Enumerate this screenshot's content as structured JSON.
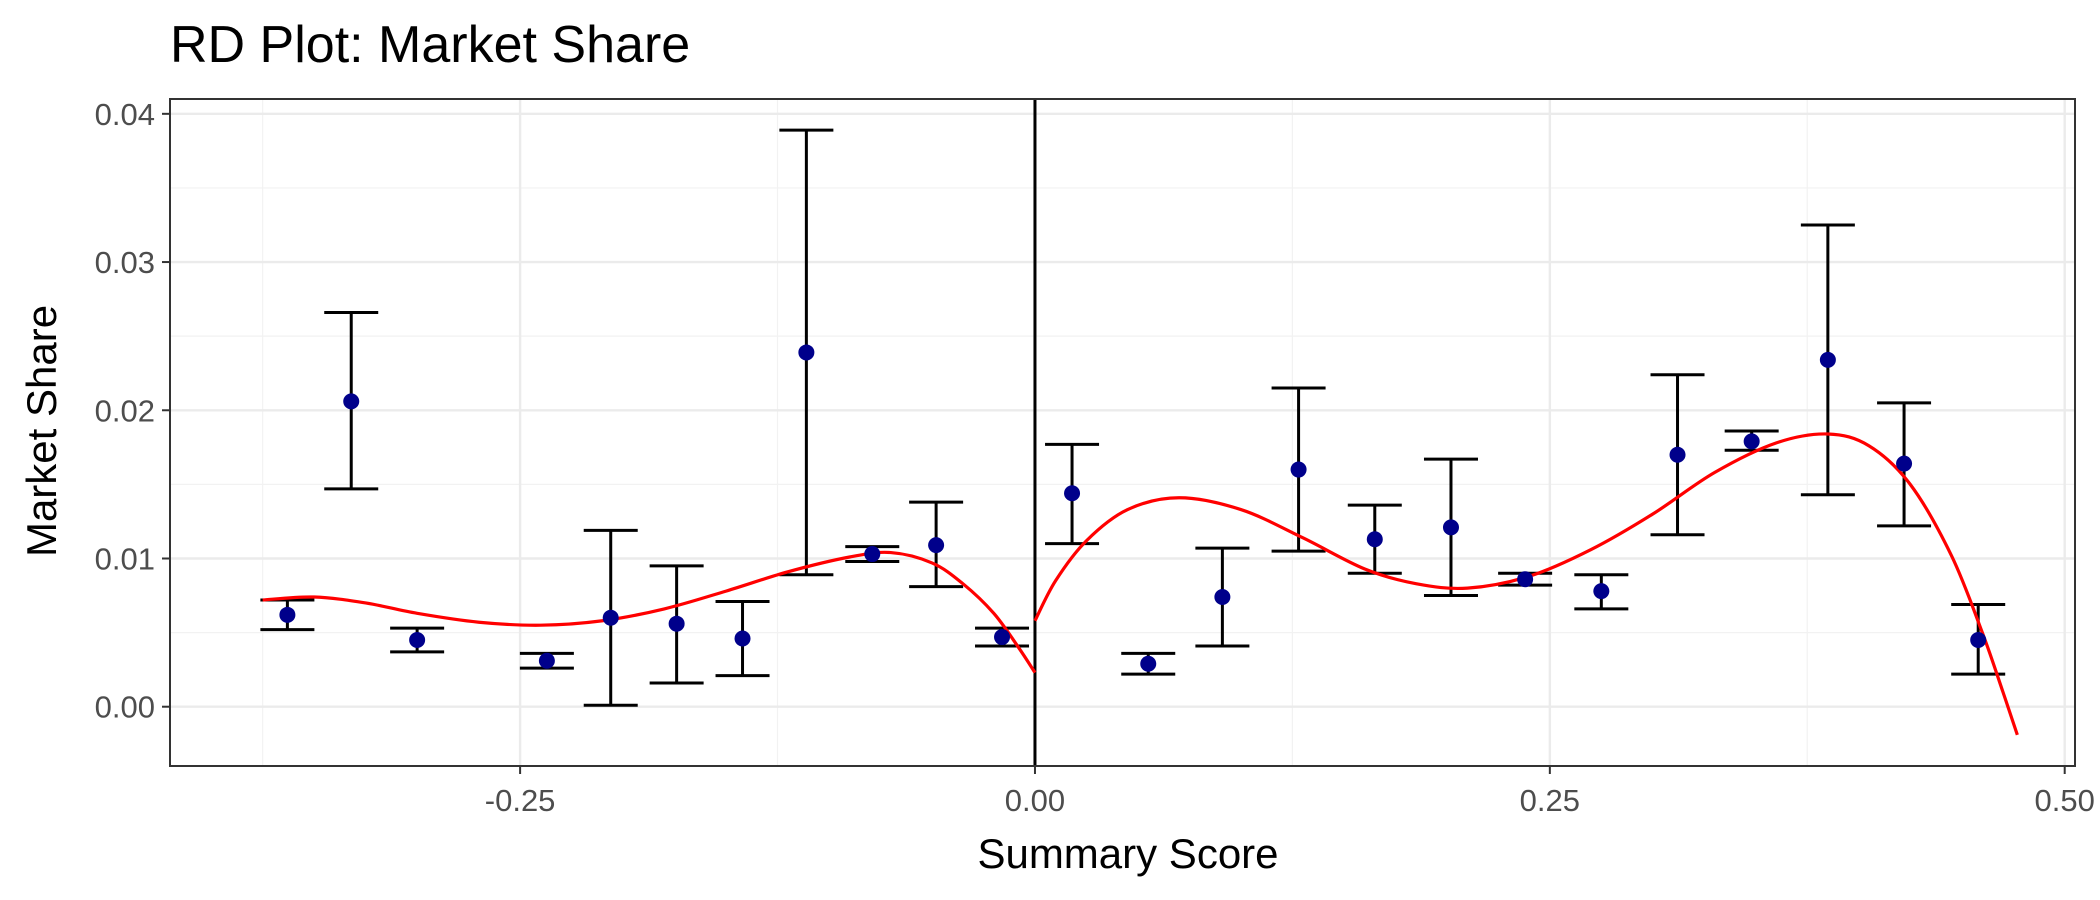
{
  "chart_data": {
    "type": "scatter",
    "title": "RD Plot: Market Share",
    "xlabel": "Summary Score",
    "ylabel": "Market Share",
    "xlim": [
      -0.42,
      0.505
    ],
    "ylim": [
      -0.004,
      0.041
    ],
    "xticks": [
      -0.25,
      0.0,
      0.25,
      0.5
    ],
    "xtick_labels": [
      "-0.25",
      "0.00",
      "0.25",
      "0.50"
    ],
    "yticks": [
      0.0,
      0.01,
      0.02,
      0.03,
      0.04
    ],
    "ytick_labels": [
      "0.00",
      "0.01",
      "0.02",
      "0.03",
      "0.04"
    ],
    "cutoff": 0.0,
    "grid": true,
    "points": [
      {
        "x": -0.363,
        "y": 0.0062,
        "lo": 0.0052,
        "hi": 0.0072
      },
      {
        "x": -0.332,
        "y": 0.0206,
        "lo": 0.0147,
        "hi": 0.0266
      },
      {
        "x": -0.3,
        "y": 0.0045,
        "lo": 0.0037,
        "hi": 0.0053
      },
      {
        "x": -0.237,
        "y": 0.0031,
        "lo": 0.0026,
        "hi": 0.0036
      },
      {
        "x": -0.206,
        "y": 0.006,
        "lo": 0.0001,
        "hi": 0.0119
      },
      {
        "x": -0.174,
        "y": 0.0056,
        "lo": 0.0016,
        "hi": 0.0095
      },
      {
        "x": -0.142,
        "y": 0.0046,
        "lo": 0.0021,
        "hi": 0.0071
      },
      {
        "x": -0.111,
        "y": 0.0239,
        "lo": 0.0089,
        "hi": 0.0389
      },
      {
        "x": -0.079,
        "y": 0.0103,
        "lo": 0.0098,
        "hi": 0.0108
      },
      {
        "x": -0.048,
        "y": 0.0109,
        "lo": 0.0081,
        "hi": 0.0138
      },
      {
        "x": -0.016,
        "y": 0.0047,
        "lo": 0.0041,
        "hi": 0.0053
      },
      {
        "x": 0.018,
        "y": 0.0144,
        "lo": 0.011,
        "hi": 0.0177
      },
      {
        "x": 0.055,
        "y": 0.0029,
        "lo": 0.0022,
        "hi": 0.0036
      },
      {
        "x": 0.091,
        "y": 0.0074,
        "lo": 0.0041,
        "hi": 0.0107
      },
      {
        "x": 0.128,
        "y": 0.016,
        "lo": 0.0105,
        "hi": 0.0215
      },
      {
        "x": 0.165,
        "y": 0.0113,
        "lo": 0.009,
        "hi": 0.0136
      },
      {
        "x": 0.202,
        "y": 0.0121,
        "lo": 0.0075,
        "hi": 0.0167
      },
      {
        "x": 0.238,
        "y": 0.0086,
        "lo": 0.0082,
        "hi": 0.009
      },
      {
        "x": 0.275,
        "y": 0.0078,
        "lo": 0.0066,
        "hi": 0.0089
      },
      {
        "x": 0.312,
        "y": 0.017,
        "lo": 0.0116,
        "hi": 0.0224
      },
      {
        "x": 0.348,
        "y": 0.0179,
        "lo": 0.0173,
        "hi": 0.0186
      },
      {
        "x": 0.385,
        "y": 0.0234,
        "lo": 0.0143,
        "hi": 0.0325
      },
      {
        "x": 0.422,
        "y": 0.0164,
        "lo": 0.0122,
        "hi": 0.0205
      },
      {
        "x": 0.458,
        "y": 0.0045,
        "lo": 0.0022,
        "hi": 0.0069
      }
    ],
    "fit_left": [
      {
        "x": -0.375,
        "y": 0.0072
      },
      {
        "x": -0.35,
        "y": 0.0074
      },
      {
        "x": -0.325,
        "y": 0.007
      },
      {
        "x": -0.3,
        "y": 0.0063
      },
      {
        "x": -0.27,
        "y": 0.0057
      },
      {
        "x": -0.24,
        "y": 0.0055
      },
      {
        "x": -0.21,
        "y": 0.0058
      },
      {
        "x": -0.18,
        "y": 0.0066
      },
      {
        "x": -0.15,
        "y": 0.0078
      },
      {
        "x": -0.12,
        "y": 0.0091
      },
      {
        "x": -0.09,
        "y": 0.0101
      },
      {
        "x": -0.07,
        "y": 0.0104
      },
      {
        "x": -0.05,
        "y": 0.0097
      },
      {
        "x": -0.035,
        "y": 0.0083
      },
      {
        "x": -0.02,
        "y": 0.0063
      },
      {
        "x": -0.008,
        "y": 0.004
      },
      {
        "x": 0.0,
        "y": 0.0023
      }
    ],
    "fit_right": [
      {
        "x": 0.0,
        "y": 0.0058
      },
      {
        "x": 0.01,
        "y": 0.0085
      },
      {
        "x": 0.025,
        "y": 0.0112
      },
      {
        "x": 0.045,
        "y": 0.0133
      },
      {
        "x": 0.07,
        "y": 0.0141
      },
      {
        "x": 0.1,
        "y": 0.0133
      },
      {
        "x": 0.13,
        "y": 0.0114
      },
      {
        "x": 0.16,
        "y": 0.0093
      },
      {
        "x": 0.185,
        "y": 0.0083
      },
      {
        "x": 0.21,
        "y": 0.008
      },
      {
        "x": 0.24,
        "y": 0.0088
      },
      {
        "x": 0.27,
        "y": 0.0106
      },
      {
        "x": 0.3,
        "y": 0.013
      },
      {
        "x": 0.33,
        "y": 0.0158
      },
      {
        "x": 0.36,
        "y": 0.0178
      },
      {
        "x": 0.385,
        "y": 0.0184
      },
      {
        "x": 0.405,
        "y": 0.0176
      },
      {
        "x": 0.425,
        "y": 0.015
      },
      {
        "x": 0.445,
        "y": 0.0102
      },
      {
        "x": 0.46,
        "y": 0.005
      },
      {
        "x": 0.47,
        "y": 0.001
      },
      {
        "x": 0.477,
        "y": -0.0019
      }
    ],
    "colors": {
      "points": "#00008b",
      "errorbars": "#000000",
      "fit": "#ff0000",
      "cutoff": "#000000",
      "grid_major": "#ebebeb",
      "grid_minor": "#f2f2f2",
      "panel_border": "#333333"
    }
  }
}
